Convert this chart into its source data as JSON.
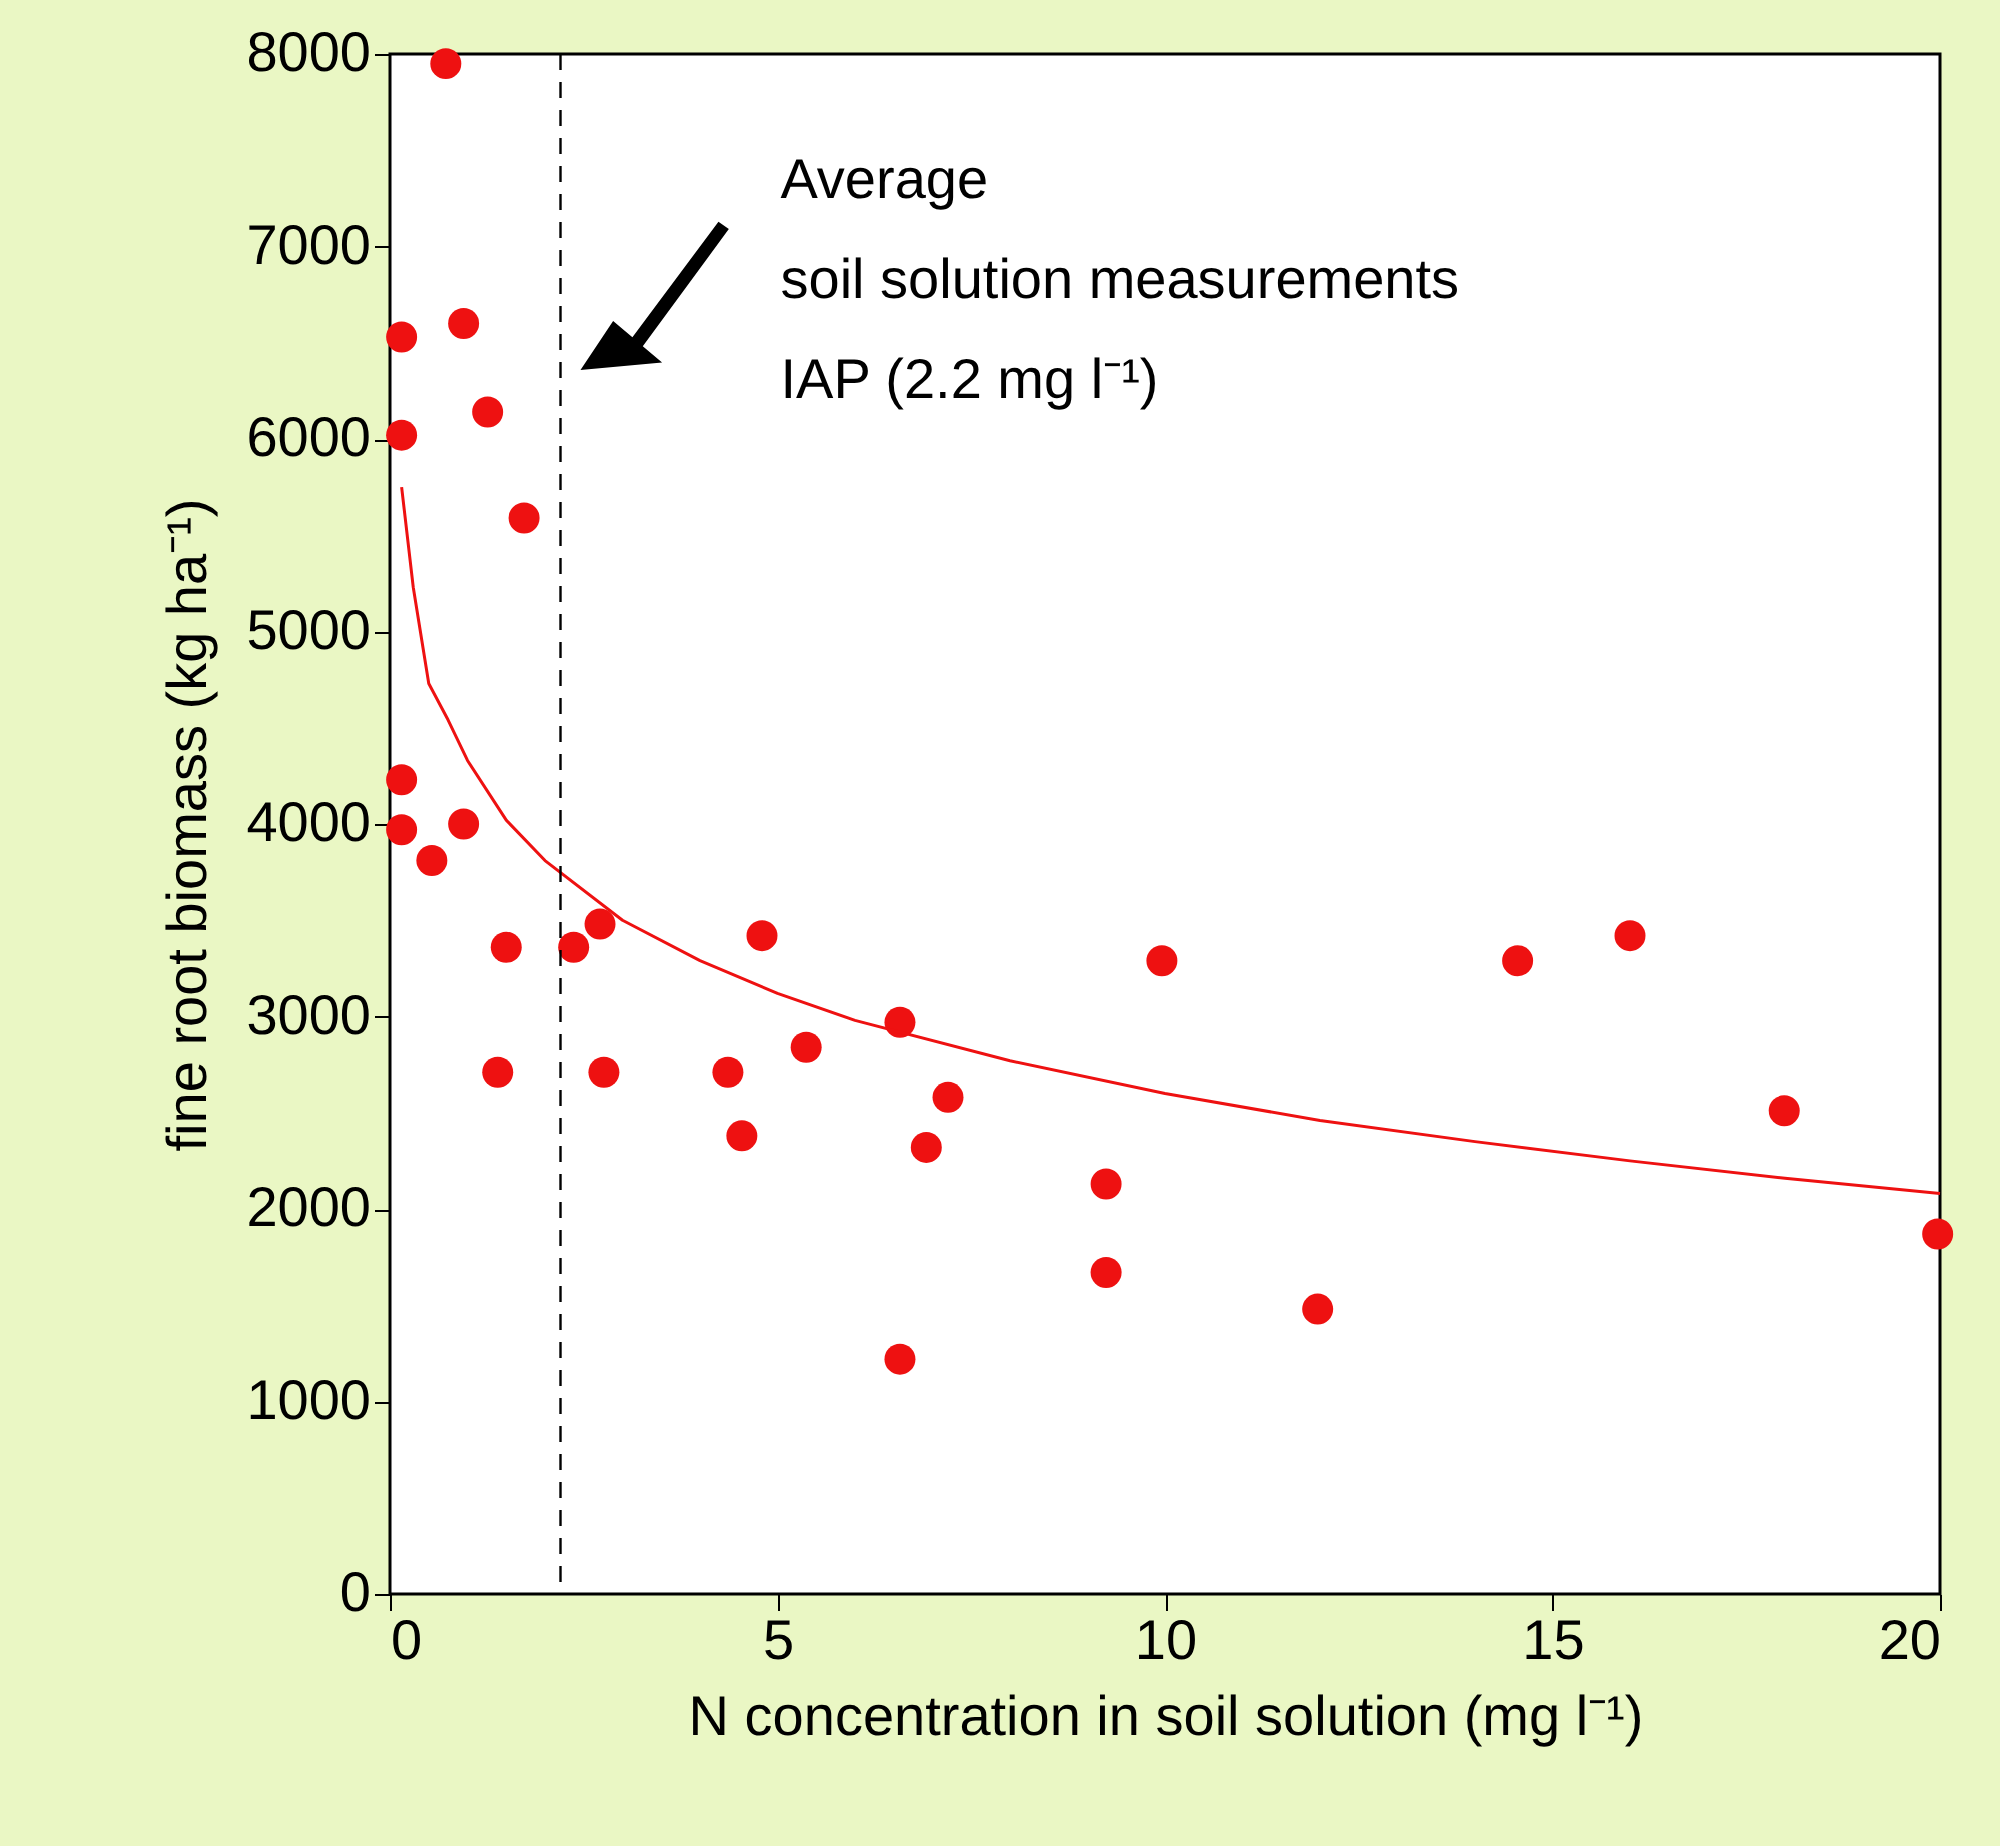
{
  "chart_data": {
    "type": "scatter",
    "xlabel": "N concentration in soil solution (mg l⁻¹)",
    "ylabel": "fine root biomass (kg ha⁻¹)",
    "xlim": [
      0,
      20
    ],
    "xticks": [
      0,
      5,
      10,
      15,
      20
    ],
    "ylim": [
      0,
      8000
    ],
    "yticks": [
      0,
      1000,
      2000,
      3000,
      4000,
      5000,
      6000,
      7000,
      8000
    ],
    "grid": false,
    "series": [
      {
        "color": "#ee1111",
        "marker": "circle",
        "x": [
          0.72,
          0.15,
          0.95,
          0.15,
          1.26,
          1.73,
          0.15,
          0.15,
          0.54,
          0.95,
          1.5,
          2.37,
          2.71,
          1.39,
          2.76,
          4.8,
          4.36,
          4.54,
          5.37,
          6.58,
          7.2,
          6.92,
          6.58,
          9.24,
          9.24,
          9.96,
          11.97,
          14.55,
          16.0,
          17.99,
          19.97
        ],
        "values": [
          7950,
          6530,
          6600,
          6020,
          6140,
          5590,
          4230,
          3970,
          3810,
          4000,
          3360,
          3360,
          3480,
          2710,
          2710,
          3420,
          2710,
          2380,
          2840,
          2970,
          2580,
          2320,
          1220,
          2130,
          1670,
          3290,
          1480,
          3290,
          3420,
          2510,
          1870
        ]
      },
      {
        "type": "line",
        "color": "#ee1111",
        "line_style": "solid",
        "marker": "none",
        "x": [
          0.15,
          0.3,
          0.5,
          0.75,
          1,
          1.5,
          2,
          3,
          4,
          5,
          6,
          8,
          10,
          12,
          14,
          16,
          18,
          20
        ],
        "values": [
          5750,
          5230,
          4730,
          4540,
          4330,
          4020,
          3810,
          3500,
          3290,
          3120,
          2980,
          2770,
          2600,
          2460,
          2350,
          2250,
          2160,
          2080
        ]
      }
    ],
    "ref_lines": [
      {
        "axis": "x",
        "value": 2.2,
        "line_style": "dashed",
        "color": "#000000",
        "label": "Average\nsoil solution measurements\nIAP (2.2 mg l⁻¹)"
      }
    ]
  }
}
